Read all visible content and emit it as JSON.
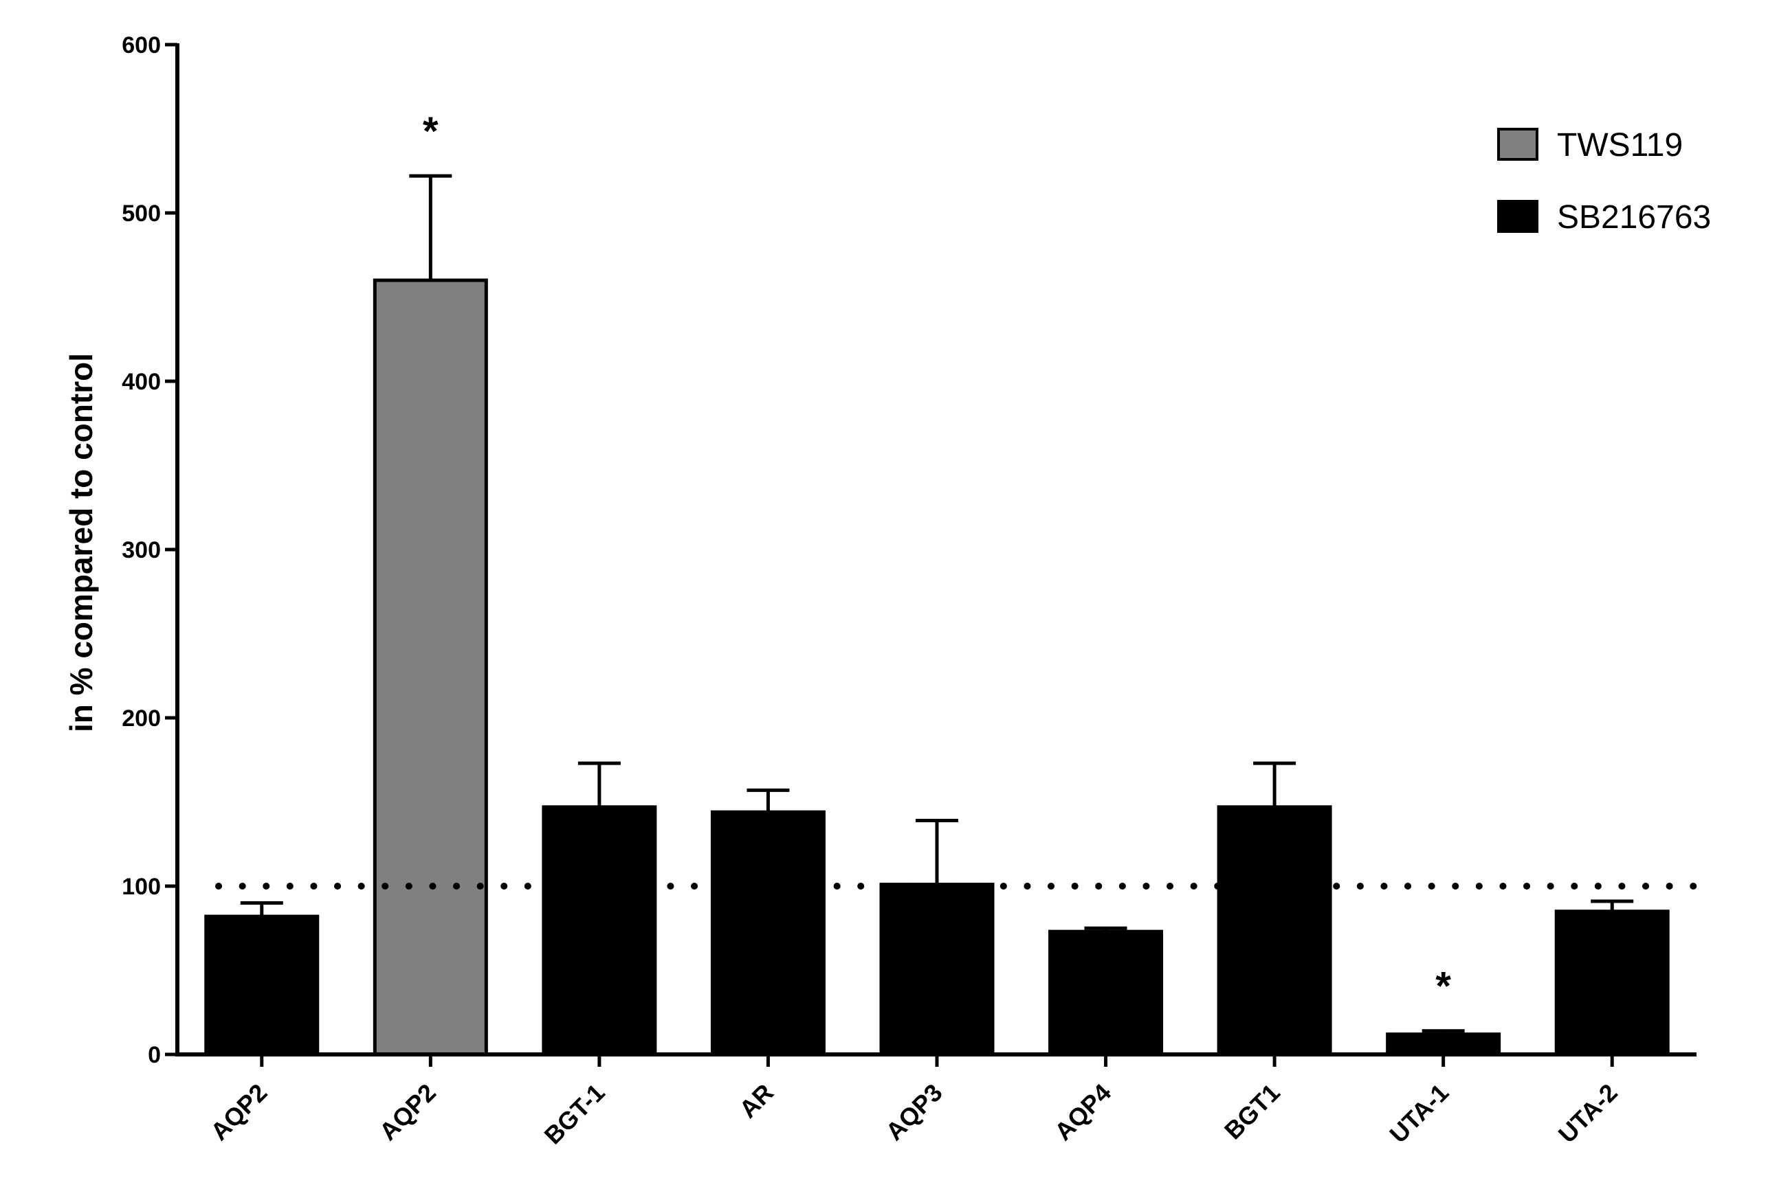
{
  "chart_data": {
    "type": "bar",
    "title": "",
    "xlabel": "",
    "ylabel": "in % compared to control",
    "ylim": [
      0,
      600
    ],
    "yticks": [
      0,
      100,
      200,
      300,
      400,
      500,
      600
    ],
    "reference_line": 100,
    "categories": [
      "AQP2",
      "AQP2",
      "BGT-1",
      "AR",
      "AQP3",
      "AQP4",
      "BGT1",
      "UTA-1",
      "UTA-2"
    ],
    "values": [
      82,
      460,
      147,
      144,
      101,
      73,
      147,
      12,
      85
    ],
    "error": [
      8,
      62,
      26,
      13,
      38,
      2,
      26,
      2,
      6
    ],
    "group": [
      "SB216763",
      "TWS119",
      "SB216763",
      "SB216763",
      "SB216763",
      "SB216763",
      "SB216763",
      "SB216763",
      "SB216763"
    ],
    "significance": [
      "",
      "*",
      "",
      "",
      "",
      "",
      "",
      "*",
      ""
    ],
    "legend": [
      {
        "name": "TWS119",
        "color": "#808080"
      },
      {
        "name": "SB216763",
        "color": "#000000"
      }
    ],
    "legend_position": "top-right",
    "grid": false
  }
}
